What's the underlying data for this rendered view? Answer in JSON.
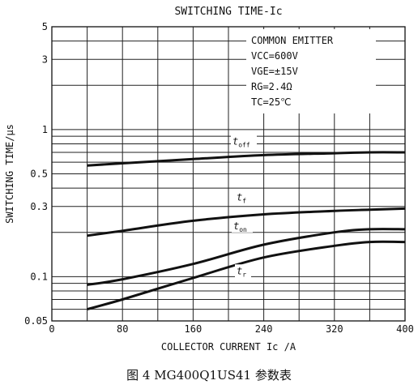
{
  "caption": "图 4 MG400Q1US41 参数表",
  "chart_data": {
    "type": "line",
    "title": "SWITCHING TIME-Ic",
    "xlabel": "COLLECTOR CURRENT Ic /A",
    "ylabel": "SWITCHING TIME/μs",
    "x_scale": "linear",
    "y_scale": "log",
    "xlim": [
      0,
      400
    ],
    "ylim": [
      0.05,
      5
    ],
    "x_ticks": [
      0,
      80,
      160,
      240,
      320,
      400
    ],
    "y_ticks": [
      0.05,
      0.1,
      0.3,
      0.5,
      1,
      3,
      5
    ],
    "y_tick_labels": [
      "0.05",
      "0.1",
      "0.3",
      "0.5",
      "1",
      "3",
      "5"
    ],
    "grid": true,
    "annotation": {
      "lines": [
        "COMMON EMITTER",
        "VCC=600V",
        "VGE=±15V",
        "RG=2.4Ω",
        "TC=25℃"
      ]
    },
    "series": [
      {
        "name": "toff",
        "x": [
          40,
          80,
          160,
          240,
          320,
          360,
          400
        ],
        "y": [
          0.57,
          0.59,
          0.63,
          0.67,
          0.69,
          0.7,
          0.7
        ]
      },
      {
        "name": "tf",
        "x": [
          40,
          80,
          160,
          240,
          320,
          360,
          400
        ],
        "y": [
          0.19,
          0.205,
          0.24,
          0.265,
          0.28,
          0.285,
          0.29
        ]
      },
      {
        "name": "ton",
        "x": [
          40,
          80,
          160,
          240,
          320,
          360,
          400
        ],
        "y": [
          0.088,
          0.096,
          0.122,
          0.165,
          0.2,
          0.21,
          0.21
        ]
      },
      {
        "name": "tr",
        "x": [
          40,
          80,
          160,
          240,
          320,
          360,
          400
        ],
        "y": [
          0.06,
          0.07,
          0.098,
          0.135,
          0.162,
          0.172,
          0.172
        ]
      }
    ]
  }
}
